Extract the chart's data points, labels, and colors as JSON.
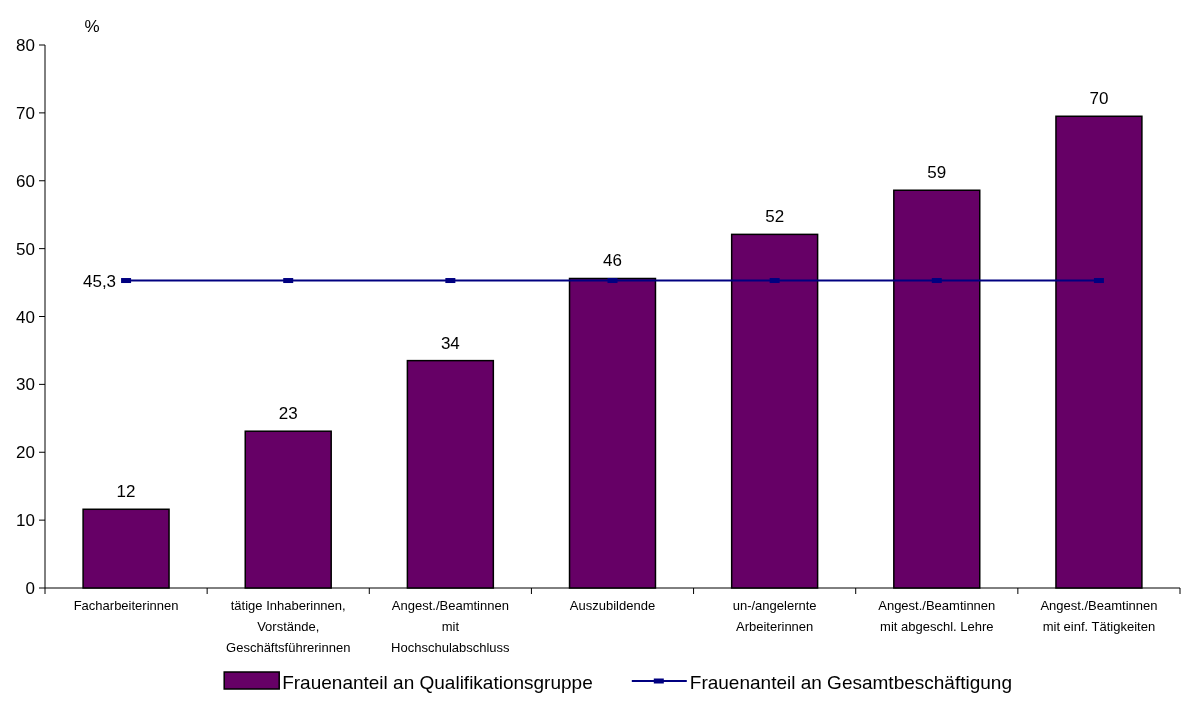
{
  "chart_data": {
    "type": "bar",
    "ylabel": "%",
    "categories": [
      "Facharbeiterinnen",
      "tätige Inhaberinnen, Vorstände, Geschäftsführerinnen",
      "Angest./Beamtinnen mit Hochschulabschluss",
      "Auszubildende",
      "un-/angelernte Arbeiterinnen",
      "Angest./Beamtinnen mit abgeschl. Lehre",
      "Angest./Beamtinnen mit einf. Tätigkeiten"
    ],
    "series": [
      {
        "name": "Frauenanteil an Qualifikationsgruppe",
        "color": "#660066",
        "values": [
          11.6,
          23.1,
          33.5,
          45.6,
          52.1,
          58.6,
          69.5
        ],
        "value_labels": [
          "12",
          "23",
          "34",
          "46",
          "52",
          "59",
          "70"
        ]
      },
      {
        "name": "Frauenanteil an Gesamtbeschäftigung",
        "type": "line",
        "color": "#000080",
        "values": [
          45.3,
          45.3,
          45.3,
          45.3,
          45.3,
          45.3,
          45.3
        ],
        "value_labels": [
          "45,3",
          null,
          null,
          null,
          null,
          null,
          null
        ],
        "marker": "square",
        "line_style": "solid"
      }
    ],
    "ylim": [
      0,
      80
    ],
    "yticks": [
      0,
      10,
      20,
      30,
      40,
      50,
      60,
      70,
      80
    ],
    "grid": false,
    "legend": "bottom"
  }
}
